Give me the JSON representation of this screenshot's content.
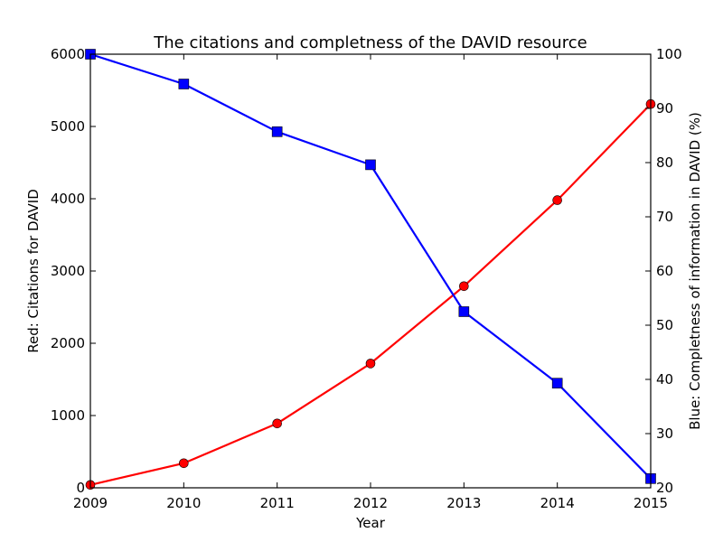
{
  "chart_data": {
    "type": "line",
    "title": "The citations and completness of the DAVID resource",
    "xlabel": "Year",
    "ylabel_left": "Red: Citations for DAVID",
    "ylabel_right": "Blue: Completness of information in DAVID (%)",
    "x": [
      2009,
      2010,
      2011,
      2012,
      2013,
      2014,
      2015
    ],
    "xlim": [
      2009,
      2015
    ],
    "ylim_left": [
      0,
      6000
    ],
    "ylim_right": [
      20,
      100
    ],
    "xticks": [
      "2009",
      "2010",
      "2011",
      "2012",
      "2013",
      "2014",
      "2015"
    ],
    "yticks_left": [
      "0",
      "1000",
      "2000",
      "3000",
      "4000",
      "5000",
      "6000"
    ],
    "yticks_right": [
      "20",
      "30",
      "40",
      "50",
      "60",
      "70",
      "80",
      "90",
      "100"
    ],
    "grid": false,
    "series": [
      {
        "axis": "left",
        "color": "#ff0000",
        "marker": "circle",
        "values": [
          40,
          340,
          890,
          1720,
          2790,
          3980,
          5310
        ]
      },
      {
        "axis": "right",
        "color": "#0000ff",
        "marker": "square",
        "values": [
          100,
          94.5,
          85.7,
          79.6,
          52.5,
          39.3,
          21.7
        ]
      }
    ]
  }
}
